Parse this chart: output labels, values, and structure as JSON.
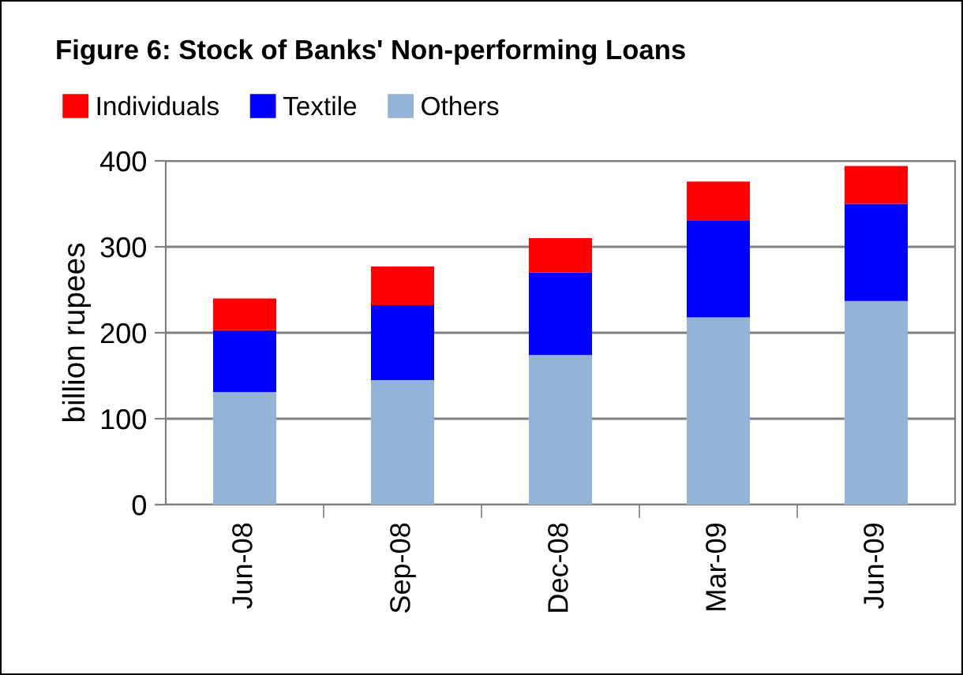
{
  "chart_data": {
    "type": "bar",
    "title": "Figure 6: Stock of Banks' Non-performing Loans",
    "ylabel": "billion rupees",
    "categories": [
      "Jun-08",
      "Sep-08",
      "Dec-08",
      "Mar-09",
      "Jun-09"
    ],
    "stacked": true,
    "series": [
      {
        "name": "Others",
        "color": "#95b3d7",
        "values": [
          131,
          145,
          174,
          218,
          237
        ]
      },
      {
        "name": "Textile",
        "color": "#0000ff",
        "values": [
          72,
          87,
          96,
          113,
          113
        ]
      },
      {
        "name": "Individuals",
        "color": "#ff0000",
        "values": [
          37,
          45,
          40,
          45,
          44
        ]
      }
    ],
    "ylim": [
      0,
      400
    ],
    "yticks": [
      0,
      100,
      200,
      300,
      400
    ],
    "grid": "y",
    "legend": "top left"
  }
}
